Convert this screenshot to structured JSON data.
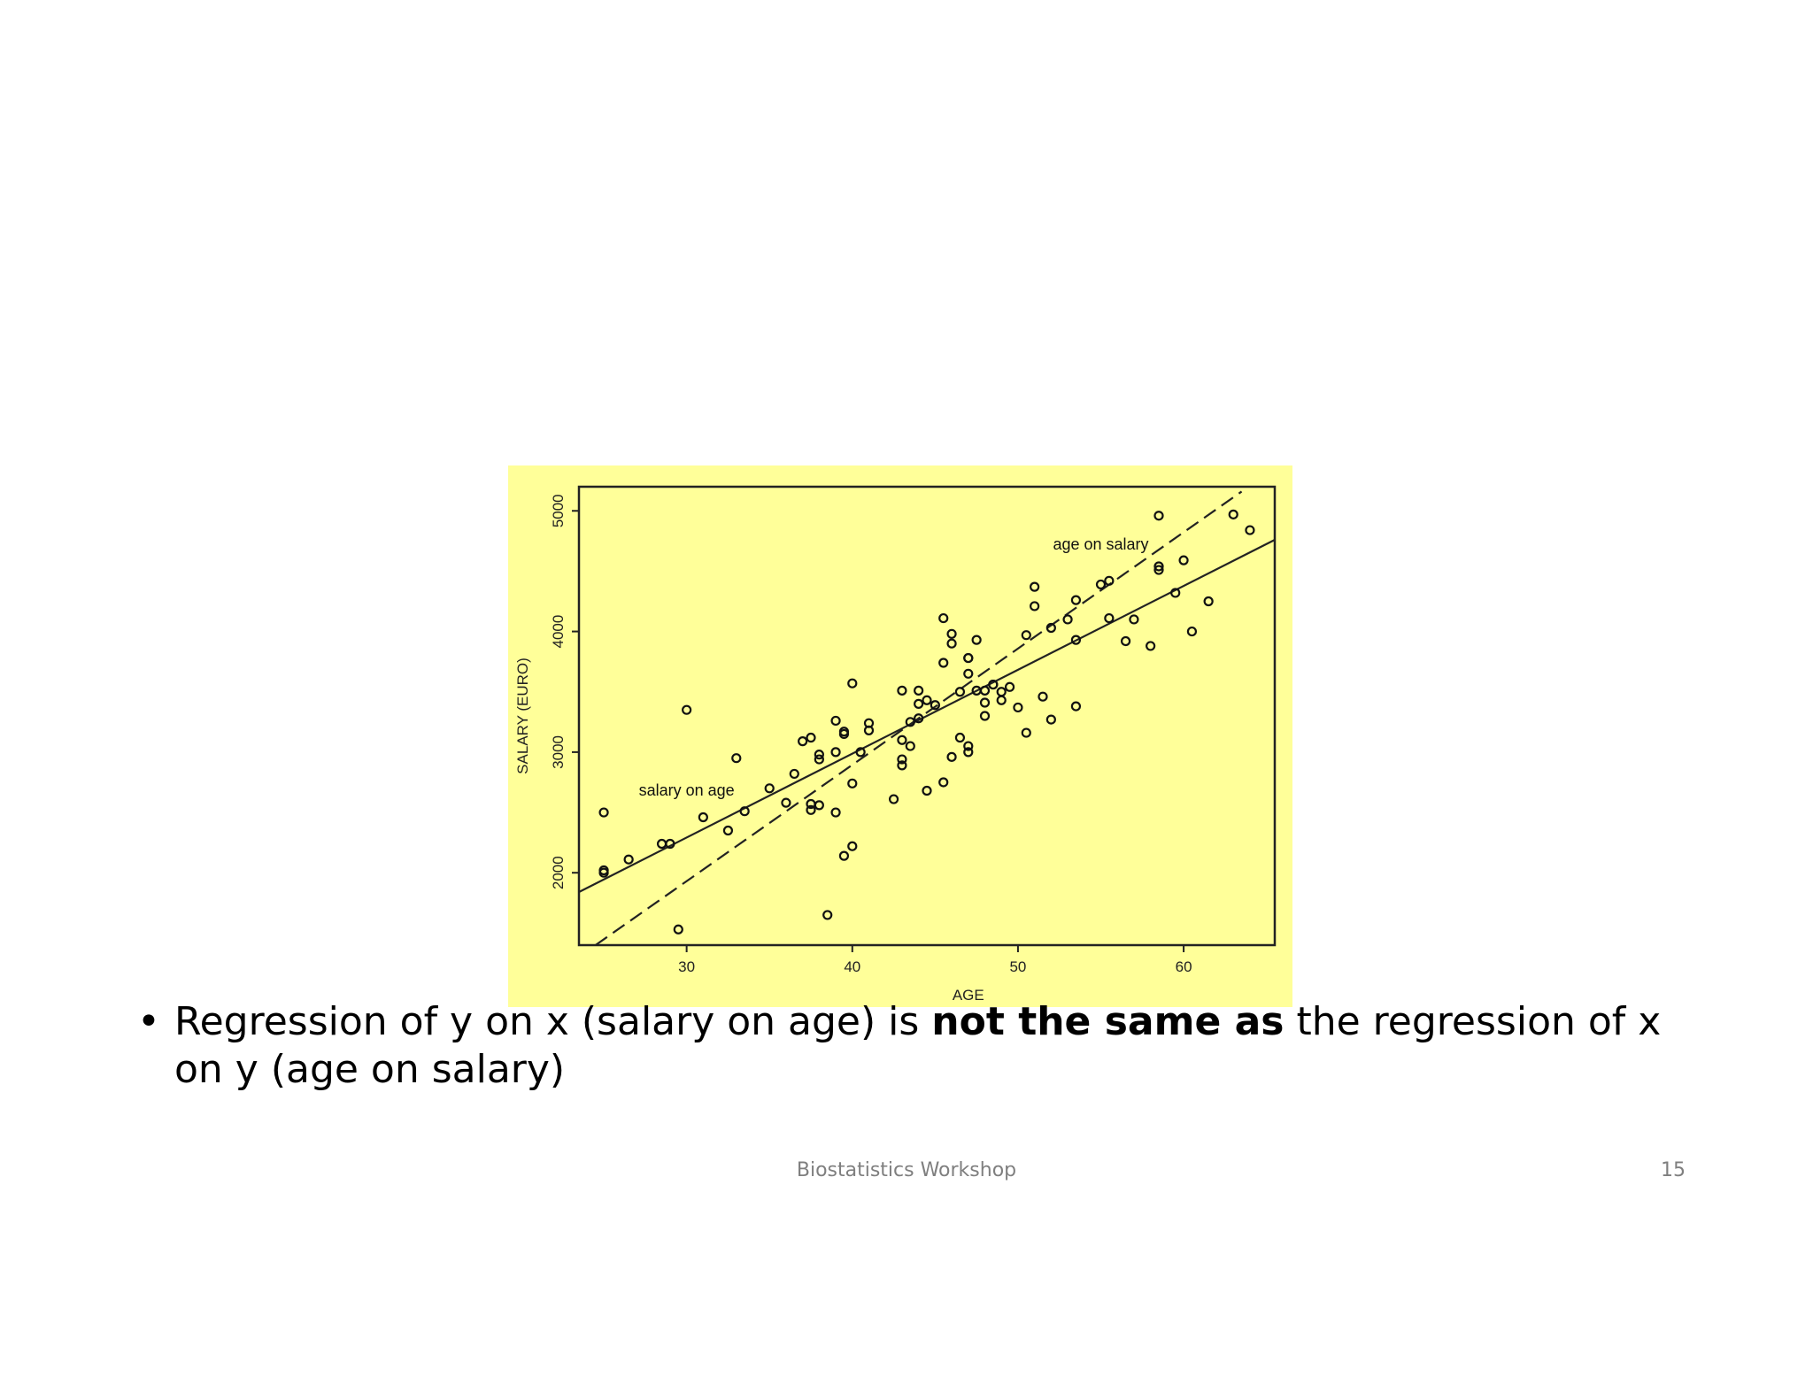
{
  "chart_data": {
    "type": "scatter",
    "xlabel": "AGE",
    "ylabel": "SALARY (EURO)",
    "xlim": [
      23.5,
      65.5
    ],
    "ylim": [
      1400,
      5200
    ],
    "x_ticks": [
      30,
      40,
      50,
      60
    ],
    "y_ticks": [
      2000,
      3000,
      4000,
      5000
    ],
    "grid": false,
    "background": "#ffff99",
    "points": {
      "x": [
        25,
        25,
        25,
        26.5,
        28.5,
        29,
        29.5,
        30,
        31,
        32.5,
        33,
        33.5,
        35,
        36,
        36.5,
        37,
        37.5,
        37.5,
        37.5,
        38,
        38,
        38,
        38.5,
        39,
        39,
        39,
        39.5,
        39.5,
        39.5,
        40,
        40,
        40,
        40.5,
        41,
        41,
        42.5,
        43,
        43,
        43,
        43,
        43.5,
        43.5,
        44,
        44,
        44,
        44.5,
        44.5,
        45,
        45.5,
        45.5,
        45.5,
        46,
        46,
        46,
        46.5,
        46.5,
        47,
        47,
        47,
        47,
        47,
        47.5,
        47.5,
        48,
        48,
        48,
        48.5,
        48.5,
        49,
        49,
        49.5,
        50,
        50.5,
        50.5,
        51,
        51,
        51.5,
        52,
        52,
        53,
        53.5,
        53.5,
        53.5,
        55,
        55.5,
        55.5,
        56.5,
        57,
        58,
        58.5,
        58.5,
        58.5,
        59.5,
        60,
        60.5,
        61.5,
        63,
        64
      ],
      "y": [
        2500,
        2000,
        2020,
        2110,
        2240,
        2240,
        1530,
        3350,
        2460,
        2350,
        2950,
        2510,
        2700,
        2580,
        2820,
        3090,
        3120,
        2570,
        2520,
        2560,
        2940,
        2980,
        1650,
        3000,
        3260,
        2500,
        2140,
        3150,
        3170,
        2220,
        3570,
        2740,
        3000,
        3240,
        3180,
        2610,
        2940,
        2890,
        3100,
        3510,
        3050,
        3250,
        3510,
        3280,
        3400,
        2680,
        3430,
        3390,
        3740,
        4110,
        2750,
        2960,
        3980,
        3900,
        3500,
        3120,
        3780,
        3650,
        3780,
        3050,
        3000,
        3930,
        3510,
        3410,
        3300,
        3510,
        3560,
        3560,
        3500,
        3430,
        3540,
        3370,
        3160,
        3970,
        4370,
        4210,
        3460,
        4030,
        3270,
        4100,
        4260,
        3380,
        3930,
        4390,
        4420,
        4110,
        3920,
        4100,
        3880,
        4960,
        4540,
        4510,
        4320,
        4590,
        4000,
        4250,
        4970,
        4840
      ]
    },
    "lines": [
      {
        "label": "salary on age",
        "style": "solid",
        "x": [
          23.5,
          65.5
        ],
        "y": [
          1840,
          4760
        ]
      },
      {
        "label": "age on salary",
        "style": "dashed",
        "x": [
          24.5,
          63.5
        ],
        "y": [
          1400,
          5160
        ]
      }
    ],
    "annotations": [
      {
        "text": "salary on age",
        "x": 30,
        "y": 2640
      },
      {
        "text": "age on salary",
        "x": 55,
        "y": 4680
      }
    ]
  },
  "bullet": {
    "symbol": "•",
    "text_before": "Regression of y on x (salary on age) is ",
    "text_bold": "not the same as",
    "text_after": " the regression of x on y (age on salary)"
  },
  "footer": {
    "center": "Biostatistics Workshop",
    "page": "15"
  }
}
